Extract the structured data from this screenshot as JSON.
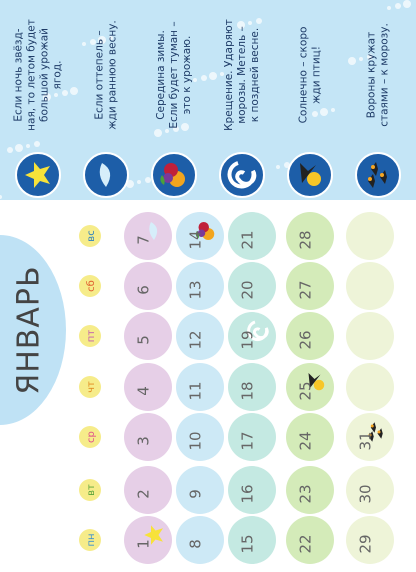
{
  "month": "ЯНВАРЬ",
  "weekdays": [
    "пн",
    "вт",
    "ср",
    "чт",
    "пт",
    "сб",
    "вс"
  ],
  "weeks": [
    [
      "1",
      "2",
      "3",
      "4",
      "5",
      "6",
      "7"
    ],
    [
      "8",
      "9",
      "10",
      "11",
      "12",
      "13",
      "14"
    ],
    [
      "15",
      "16",
      "17",
      "18",
      "19",
      "20",
      "21"
    ],
    [
      "22",
      "23",
      "24",
      "25",
      "26",
      "27",
      "28"
    ],
    [
      "29",
      "30",
      "31",
      null,
      null,
      null,
      null
    ]
  ],
  "signs": [
    {
      "lines": [
        "Если ночь звёзд-",
        "ная, то летом будет",
        "большой урожай",
        "ягод."
      ]
    },
    {
      "lines": [
        "Если оттепель –",
        "жди раннюю весну."
      ]
    },
    {
      "lines": [
        "Середина зимы.",
        "Если будет туман –",
        "это к урожаю."
      ]
    },
    {
      "lines": [
        "Крещение. Ударяют",
        "морозы. Метель –",
        "к поздней весне."
      ]
    },
    {
      "lines": [
        "Солнечно – скоро",
        "жди птиц!"
      ]
    },
    {
      "lines": [
        "Вороны кружат",
        "стаями – к морозу."
      ]
    }
  ]
}
